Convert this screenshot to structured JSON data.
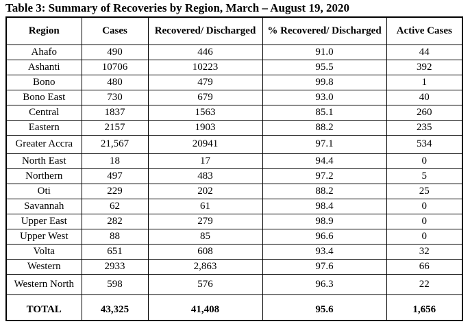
{
  "title": "Table 3: Summary of Recoveries by Region, March – August 19, 2020",
  "table": {
    "headers": [
      "Region",
      "Cases",
      "Recovered/ Discharged",
      "% Recovered/ Discharged",
      "Active Cases"
    ],
    "rows": [
      {
        "region": "Ahafo",
        "cases": "490",
        "recovered": "446",
        "pct": "91.0",
        "active": "44"
      },
      {
        "region": "Ashanti",
        "cases": "10706",
        "recovered": "10223",
        "pct": "95.5",
        "active": "392"
      },
      {
        "region": "Bono",
        "cases": "480",
        "recovered": "479",
        "pct": "99.8",
        "active": "1"
      },
      {
        "region": "Bono East",
        "cases": "730",
        "recovered": "679",
        "pct": "93.0",
        "active": "40"
      },
      {
        "region": "Central",
        "cases": "1837",
        "recovered": "1563",
        "pct": "85.1",
        "active": "260"
      },
      {
        "region": "Eastern",
        "cases": "2157",
        "recovered": "1903",
        "pct": "88.2",
        "active": "235"
      },
      {
        "region": "Greater Accra",
        "cases": "21,567",
        "recovered": "20941",
        "pct": "97.1",
        "active": "534"
      },
      {
        "region": "North East",
        "cases": "18",
        "recovered": "17",
        "pct": "94.4",
        "active": "0"
      },
      {
        "region": "Northern",
        "cases": "497",
        "recovered": "483",
        "pct": "97.2",
        "active": "5"
      },
      {
        "region": "Oti",
        "cases": "229",
        "recovered": "202",
        "pct": "88.2",
        "active": "25"
      },
      {
        "region": "Savannah",
        "cases": "62",
        "recovered": "61",
        "pct": "98.4",
        "active": "0"
      },
      {
        "region": "Upper East",
        "cases": "282",
        "recovered": "279",
        "pct": "98.9",
        "active": "0"
      },
      {
        "region": "Upper West",
        "cases": "88",
        "recovered": "85",
        "pct": "96.6",
        "active": "0"
      },
      {
        "region": "Volta",
        "cases": "651",
        "recovered": "608",
        "pct": "93.4",
        "active": "32"
      },
      {
        "region": "Western",
        "cases": "2933",
        "recovered": "2,863",
        "pct": "97.6",
        "active": "66"
      },
      {
        "region": "Western North",
        "cases": "598",
        "recovered": "576",
        "pct": "96.3",
        "active": "22"
      }
    ],
    "total": {
      "region": "TOTAL",
      "cases": "43,325",
      "recovered": "41,408",
      "pct": "95.6",
      "active": "1,656"
    }
  }
}
